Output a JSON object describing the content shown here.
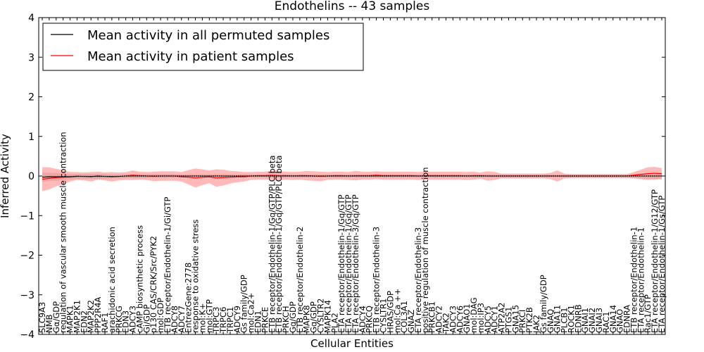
{
  "chart_data": {
    "type": "line",
    "title": "Endothelins -- 43 samples",
    "xlabel": "Cellular Entities",
    "ylabel": "Inferred Activity",
    "ylim": [
      -4,
      4
    ],
    "yticks": [
      "−4",
      "−3",
      "−2",
      "−1",
      "0",
      "1",
      "2",
      "3",
      "4"
    ],
    "legend_position": "top-left",
    "grid": false,
    "colors": {
      "permuted": "#000000",
      "patient": "#ff0000",
      "band_patient": "#ff8080",
      "band_permuted": "#bbbbbb"
    },
    "categories": [
      "SLC9A3",
      "NMB",
      "Gα/GDP",
      "regulation of vascular smooth muscle contraction",
      "MAPK1",
      "MAP2K1",
      "EDN2",
      "MAP2K2",
      "PPP2R4A",
      "RAF1",
      "arachidonic acid secretion",
      "PRKCG",
      "EDN3",
      "ADCY3",
      "cAMP biosynthetic process",
      "Gi/GDP",
      "p130 CAS/CRK/Src/PYK2",
      "mol:GDP",
      "ETB receptor/Endothelin-1/Gi/GTP",
      "ADCY8",
      "ADCY7",
      "EntrezGene:2778",
      "response to oxidative stress",
      "mol:K+",
      "mol:GTP",
      "TRPC3",
      "TRPC6",
      "TRPC1",
      "ADCY9",
      "Gs family/GDP",
      "mol:Ca2+",
      "EDN1",
      "PRKCE",
      "ETB receptor/Endothelin-1/Gq/GTP/PLC beta",
      "ETB receptor/Endothelin-1/Gq/GTP/PLC beta",
      "PRKCH",
      "Gq/GDP",
      "ETB receptor/Endothelin-2",
      "MAPK8",
      "Gq/GDP",
      "CYSLTR2",
      "MAPK14",
      "PLA2",
      "ETA receptor/Endothelin-1/Gq/GTP",
      "ETA receptor/Endothelin-1/Gq/GTP",
      "ETA receptor/Endothelin-3/Gq/GTP",
      "ADCY4",
      "PRKCQ",
      "ETB receptor/Endothelin-3",
      "CYSLTR1",
      "HRAS/GDP",
      "mol:Ca ++",
      "COL3A1",
      "GNAZ",
      "ETA receptor/Endothelin-3",
      "positive regulation of muscle contraction",
      "PRKCB1",
      "ADCY2",
      "TAK2",
      "ADCY3",
      "ADCY6",
      "GNAO1",
      "mol:DAG",
      "mol:IP3",
      "ADCY5",
      "ADCY1",
      "ATP2A2",
      "PTGS1",
      "GNA15",
      "PRKCI",
      "PTK2B",
      "JAK2",
      "Gs family/GDP",
      "GNAQ",
      "GNA11",
      "PLCB1",
      "ROCK1",
      "EDNRB",
      "GNAI1",
      "GNAI2",
      "GNAI3",
      "RAC1",
      "GNA14",
      "GNAO",
      "EDNRA",
      "ETB receptor/Endothelin-1",
      "ETA receptor/Endothelin-1",
      "Rac1/GTP",
      "ETA receptor/Endothelin-1/G12/GTP",
      "ETA receptor/Endothelin-1/Gs/GTP"
    ],
    "series": [
      {
        "name": "Mean activity in all permuted samples",
        "values": [
          -0.03,
          -0.02,
          -0.02,
          -0.02,
          -0.02,
          -0.01,
          -0.01,
          -0.01,
          -0.01,
          -0.01,
          -0.01,
          -0.01,
          0,
          0,
          0,
          0,
          0,
          0,
          0,
          0,
          0,
          0,
          0,
          0,
          0,
          0,
          0,
          0,
          0,
          0,
          0,
          0,
          0,
          0,
          0,
          0,
          0,
          0,
          0,
          0,
          0,
          0,
          0,
          0,
          0,
          0,
          0,
          0,
          0,
          0,
          0,
          0,
          0,
          0,
          0,
          0,
          0,
          0,
          0,
          0,
          0,
          0,
          0,
          0,
          0,
          0,
          0,
          0,
          0,
          0,
          0,
          0,
          0,
          0,
          0,
          0,
          0,
          0,
          0,
          0,
          0,
          0,
          0,
          0,
          0,
          0,
          0,
          0,
          0,
          0
        ],
        "band": [
          0.12,
          0.1,
          0.1,
          0.08,
          0.07,
          0.06,
          0.06,
          0.06,
          0.06,
          0.06,
          0.05,
          0.05,
          0.05,
          0.05,
          0.05,
          0.05,
          0.05,
          0.05,
          0.05,
          0.05,
          0.04,
          0.04,
          0.04,
          0.04,
          0.04,
          0.04,
          0.04,
          0.04,
          0.04,
          0.04,
          0.04,
          0.04,
          0.04,
          0.04,
          0.04,
          0.04,
          0.04,
          0.04,
          0.04,
          0.04,
          0.04,
          0.04,
          0.04,
          0.04,
          0.04,
          0.04,
          0.04,
          0.04,
          0.04,
          0.04,
          0.04,
          0.04,
          0.04,
          0.04,
          0.04,
          0.04,
          0.04,
          0.04,
          0.04,
          0.04,
          0.04,
          0.04,
          0.04,
          0.04,
          0.04,
          0.04,
          0.04,
          0.04,
          0.04,
          0.04,
          0.04,
          0.04,
          0.04,
          0.04,
          0.04,
          0.04,
          0.04,
          0.04,
          0.04,
          0.04,
          0.04,
          0.04,
          0.04,
          0.04,
          0.04,
          0.05,
          0.06,
          0.07,
          0.07,
          0.07
        ]
      },
      {
        "name": "Mean activity in patient samples",
        "values": [
          -0.08,
          -0.06,
          -0.04,
          -0.03,
          -0.02,
          0,
          -0.01,
          -0.02,
          0.01,
          -0.01,
          -0.02,
          -0.01,
          0,
          0.02,
          0.01,
          0,
          -0.01,
          0,
          0,
          0,
          -0.02,
          -0.03,
          -0.05,
          -0.03,
          -0.02,
          -0.05,
          -0.04,
          -0.03,
          -0.02,
          -0.02,
          0,
          0.01,
          0.01,
          0.02,
          0.01,
          0.01,
          0,
          0.01,
          0.01,
          0,
          -0.01,
          0,
          0.01,
          0.01,
          0,
          0.01,
          0.01,
          0.01,
          0.02,
          0.01,
          0.01,
          0.01,
          0.01,
          0.01,
          0,
          0.01,
          0.01,
          0.01,
          0.01,
          0.01,
          0.01,
          0,
          0.01,
          0.01,
          0,
          0,
          0,
          0,
          0,
          0,
          0,
          0,
          0,
          0,
          0,
          0,
          0,
          0,
          0,
          0,
          0,
          0,
          0,
          0,
          0,
          0.02,
          0.04,
          0.06,
          0.07,
          0.06
        ],
        "band": [
          0.3,
          0.28,
          0.22,
          0.18,
          0.12,
          0.1,
          0.1,
          0.12,
          0.1,
          0.1,
          0.12,
          0.1,
          0.1,
          0.12,
          0.1,
          0.1,
          0.12,
          0.12,
          0.12,
          0.12,
          0.12,
          0.18,
          0.24,
          0.2,
          0.16,
          0.22,
          0.2,
          0.16,
          0.14,
          0.12,
          0.1,
          0.1,
          0.1,
          0.12,
          0.12,
          0.1,
          0.1,
          0.1,
          0.12,
          0.12,
          0.12,
          0.1,
          0.1,
          0.1,
          0.1,
          0.12,
          0.1,
          0.1,
          0.1,
          0.1,
          0.1,
          0.1,
          0.1,
          0.1,
          0.1,
          0.1,
          0.1,
          0.1,
          0.1,
          0.1,
          0.1,
          0.1,
          0.1,
          0.08,
          0.12,
          0.1,
          0.06,
          0.06,
          0.06,
          0.06,
          0.06,
          0.06,
          0.06,
          0.08,
          0.14,
          0.06,
          0.05,
          0.05,
          0.05,
          0.05,
          0.05,
          0.05,
          0.05,
          0.05,
          0.05,
          0.08,
          0.12,
          0.16,
          0.16,
          0.14
        ]
      }
    ]
  }
}
